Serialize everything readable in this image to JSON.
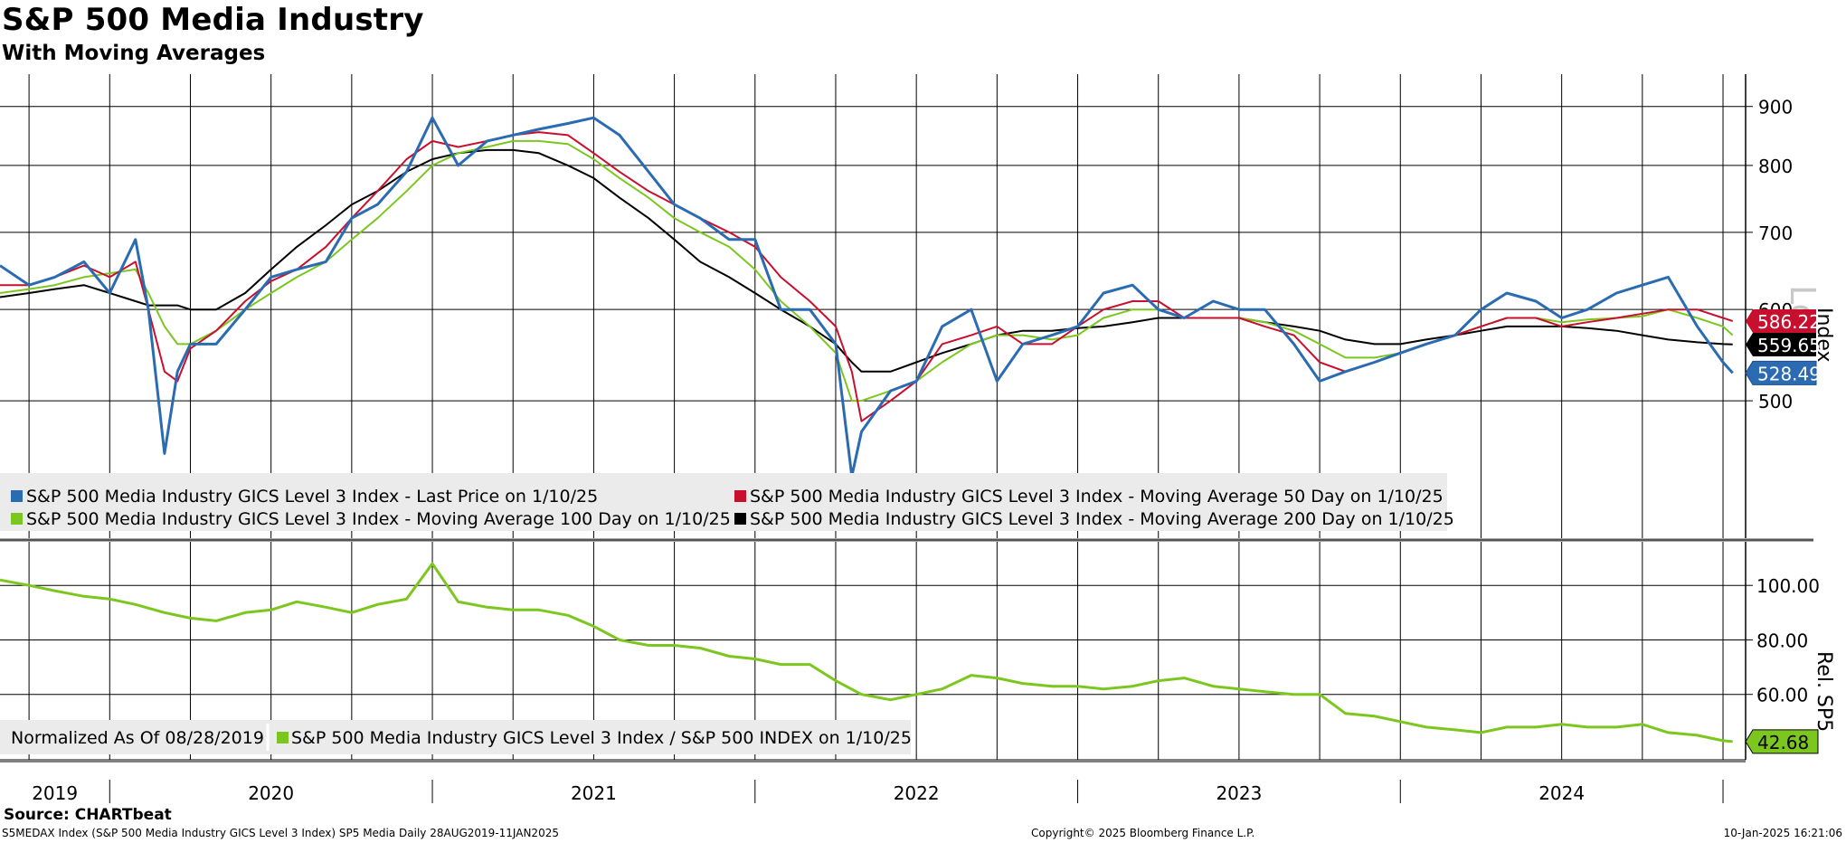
{
  "header": {
    "title": "S&P 500 Media Industry",
    "subtitle": "With Moving Averages"
  },
  "footer": {
    "source": "Source: CHARTbeat",
    "ticker_info": "S5MEDAX Index (S&P 500 Media Industry GICS Level 3 Index) SP5 Media  Daily 28AUG2019-11JAN2025",
    "copyright": "Copyright© 2025 Bloomberg Finance L.P.",
    "timestamp": "10-Jan-2025 16:21:06"
  },
  "colors": {
    "price": "#2a6bb2",
    "ma50": "#c8102e",
    "ma100": "#7cc71f",
    "ma200": "#000000",
    "rel": "#7cc71f",
    "legend_bg": "#ebebeb"
  },
  "chart_data": [
    {
      "type": "line",
      "title": "S&P 500 Media Industry",
      "ylabel": "Index",
      "ylim": [
        380,
        960
      ],
      "yticks": [
        "900",
        "800",
        "700",
        "600",
        "500"
      ],
      "ytick_values": [
        900,
        800,
        700,
        600,
        500
      ],
      "watermark": "Log",
      "x": [
        2019.66,
        2019.75,
        2019.83,
        2019.92,
        2020.0,
        2020.08,
        2020.12,
        2020.17,
        2020.21,
        2020.25,
        2020.33,
        2020.42,
        2020.5,
        2020.58,
        2020.67,
        2020.75,
        2020.83,
        2020.92,
        2021.0,
        2021.08,
        2021.17,
        2021.25,
        2021.33,
        2021.42,
        2021.5,
        2021.58,
        2021.67,
        2021.75,
        2021.83,
        2021.92,
        2022.0,
        2022.08,
        2022.17,
        2022.25,
        2022.3,
        2022.33,
        2022.42,
        2022.5,
        2022.58,
        2022.67,
        2022.75,
        2022.83,
        2022.92,
        2023.0,
        2023.08,
        2023.17,
        2023.25,
        2023.33,
        2023.42,
        2023.5,
        2023.58,
        2023.67,
        2023.75,
        2023.83,
        2023.92,
        2024.0,
        2024.08,
        2024.17,
        2024.25,
        2024.33,
        2024.42,
        2024.5,
        2024.58,
        2024.67,
        2024.75,
        2024.83,
        2024.92,
        2025.0,
        2025.03
      ],
      "series": [
        {
          "name": "S&P 500 Media Industry GICS Level 3 Index - Last Price on 1/10/25",
          "color": "#2a6bb2",
          "width": 3,
          "values": [
            655,
            630,
            640,
            660,
            620,
            690,
            600,
            450,
            530,
            560,
            560,
            600,
            640,
            650,
            660,
            720,
            740,
            790,
            880,
            800,
            840,
            850,
            860,
            870,
            880,
            850,
            790,
            740,
            720,
            690,
            690,
            600,
            600,
            560,
            430,
            470,
            510,
            520,
            580,
            600,
            520,
            560,
            570,
            580,
            620,
            630,
            600,
            590,
            610,
            600,
            600,
            560,
            520,
            530,
            540,
            550,
            560,
            570,
            600,
            620,
            610,
            590,
            600,
            620,
            630,
            640,
            580,
            540,
            528.49
          ]
        },
        {
          "name": "S&P 500 Media Industry GICS Level 3 Index - Moving Average 50 Day on 1/10/25",
          "color": "#c8102e",
          "width": 2,
          "values": [
            630,
            630,
            640,
            655,
            640,
            660,
            600,
            530,
            520,
            555,
            575,
            610,
            635,
            650,
            680,
            720,
            760,
            810,
            840,
            830,
            840,
            850,
            855,
            850,
            820,
            790,
            760,
            740,
            720,
            700,
            680,
            640,
            610,
            580,
            530,
            480,
            500,
            520,
            560,
            570,
            580,
            560,
            560,
            580,
            600,
            610,
            610,
            590,
            590,
            590,
            580,
            570,
            540,
            530,
            540,
            550,
            560,
            570,
            580,
            590,
            590,
            580,
            585,
            590,
            595,
            600,
            600,
            590,
            586.22
          ]
        },
        {
          "name": "S&P 500 Media Industry GICS Level 3 Index - Moving Average 100 Day on 1/10/25",
          "color": "#7cc71f",
          "width": 2,
          "values": [
            620,
            625,
            630,
            640,
            645,
            650,
            620,
            580,
            560,
            560,
            575,
            600,
            620,
            640,
            660,
            690,
            720,
            760,
            800,
            820,
            830,
            840,
            840,
            835,
            810,
            780,
            750,
            720,
            700,
            680,
            650,
            610,
            580,
            550,
            500,
            500,
            510,
            520,
            540,
            560,
            570,
            570,
            565,
            570,
            590,
            600,
            600,
            590,
            590,
            590,
            585,
            575,
            560,
            545,
            545,
            550,
            560,
            570,
            580,
            590,
            590,
            585,
            588,
            590,
            592,
            600,
            590,
            580,
            570
          ]
        },
        {
          "name": "S&P 500 Media Industry GICS Level 3 Index - Moving Average 200 Day on 1/10/25",
          "color": "#000000",
          "width": 2,
          "values": [
            615,
            620,
            625,
            630,
            620,
            610,
            605,
            605,
            605,
            600,
            600,
            620,
            650,
            680,
            710,
            740,
            760,
            790,
            810,
            820,
            825,
            825,
            820,
            800,
            780,
            750,
            720,
            690,
            660,
            640,
            620,
            600,
            580,
            560,
            540,
            530,
            530,
            540,
            550,
            560,
            570,
            575,
            575,
            578,
            580,
            585,
            590,
            590,
            590,
            590,
            585,
            580,
            575,
            565,
            560,
            560,
            565,
            570,
            575,
            580,
            580,
            580,
            578,
            575,
            570,
            565,
            562,
            560,
            559.65
          ]
        }
      ],
      "last_value_labels": [
        {
          "text": "586.22",
          "series": "ma50"
        },
        {
          "text": "559.65",
          "series": "ma200"
        },
        {
          "text": "528.49",
          "series": "price"
        }
      ],
      "legend": [
        {
          "label": "S&P 500 Media Industry GICS Level 3 Index - Last Price on 1/10/25",
          "color": "#2a6bb2"
        },
        {
          "label": "S&P 500 Media Industry GICS Level 3 Index - Moving Average 50 Day on 1/10/25",
          "color": "#c8102e"
        },
        {
          "label": "S&P 500 Media Industry GICS Level 3 Index - Moving Average 100 Day on 1/10/25",
          "color": "#7cc71f"
        },
        {
          "label": "S&P 500 Media Industry GICS Level 3 Index - Moving Average 200 Day on 1/10/25",
          "color": "#000000"
        }
      ],
      "legend_position": "bottom-left"
    },
    {
      "type": "line",
      "title": "Relative to S&P 500",
      "ylabel": "Rel. SP5",
      "ylim": [
        36,
        116
      ],
      "yticks": [
        "100.00",
        "80.00",
        "60.00"
      ],
      "ytick_values": [
        100,
        80,
        60
      ],
      "x": [
        2019.66,
        2019.75,
        2019.83,
        2019.92,
        2020.0,
        2020.08,
        2020.17,
        2020.25,
        2020.33,
        2020.42,
        2020.5,
        2020.58,
        2020.67,
        2020.75,
        2020.83,
        2020.92,
        2021.0,
        2021.08,
        2021.17,
        2021.25,
        2021.33,
        2021.42,
        2021.5,
        2021.58,
        2021.67,
        2021.75,
        2021.83,
        2021.92,
        2022.0,
        2022.08,
        2022.17,
        2022.25,
        2022.33,
        2022.42,
        2022.5,
        2022.58,
        2022.67,
        2022.75,
        2022.83,
        2022.92,
        2023.0,
        2023.08,
        2023.17,
        2023.25,
        2023.33,
        2023.42,
        2023.5,
        2023.58,
        2023.67,
        2023.75,
        2023.83,
        2023.92,
        2024.0,
        2024.08,
        2024.17,
        2024.25,
        2024.33,
        2024.42,
        2024.5,
        2024.58,
        2024.67,
        2024.75,
        2024.83,
        2024.92,
        2025.0,
        2025.03
      ],
      "series": [
        {
          "name": "S&P 500 Media Industry GICS Level 3 Index / S&P 500 INDEX on 1/10/25",
          "color": "#7cc71f",
          "width": 3,
          "values": [
            102,
            100,
            98,
            96,
            95,
            93,
            90,
            88,
            87,
            90,
            91,
            94,
            92,
            90,
            93,
            95,
            108,
            94,
            92,
            91,
            91,
            89,
            85,
            80,
            78,
            78,
            77,
            74,
            73,
            71,
            71,
            65,
            60,
            58,
            60,
            62,
            67,
            66,
            64,
            63,
            63,
            62,
            63,
            65,
            66,
            63,
            62,
            61,
            60,
            60,
            53,
            52,
            50,
            48,
            47,
            46,
            48,
            48,
            49,
            48,
            48,
            49,
            46,
            45,
            43,
            42.68
          ]
        }
      ],
      "last_value_label": "42.68",
      "note": "Normalized As Of 08/28/2019",
      "legend": [
        {
          "label": "S&P 500 Media Industry GICS Level 3 Index / S&P 500 INDEX on 1/10/25",
          "color": "#7cc71f"
        }
      ]
    }
  ],
  "xaxis": {
    "year_labels": [
      "2019",
      "2020",
      "2021",
      "2022",
      "2023",
      "2024"
    ],
    "year_centers": [
      2019.83,
      2020.5,
      2021.5,
      2022.5,
      2023.5,
      2024.5
    ],
    "year_boundaries": [
      2020.0,
      2021.0,
      2022.0,
      2023.0,
      2024.0,
      2025.0
    ],
    "grid_months": [
      2019.75,
      2020.0,
      2020.25,
      2020.5,
      2020.75,
      2021.0,
      2021.25,
      2021.5,
      2021.75,
      2022.0,
      2022.25,
      2022.5,
      2022.75,
      2023.0,
      2023.25,
      2023.5,
      2023.75,
      2024.0,
      2024.25,
      2024.5,
      2024.75,
      2025.0
    ]
  }
}
